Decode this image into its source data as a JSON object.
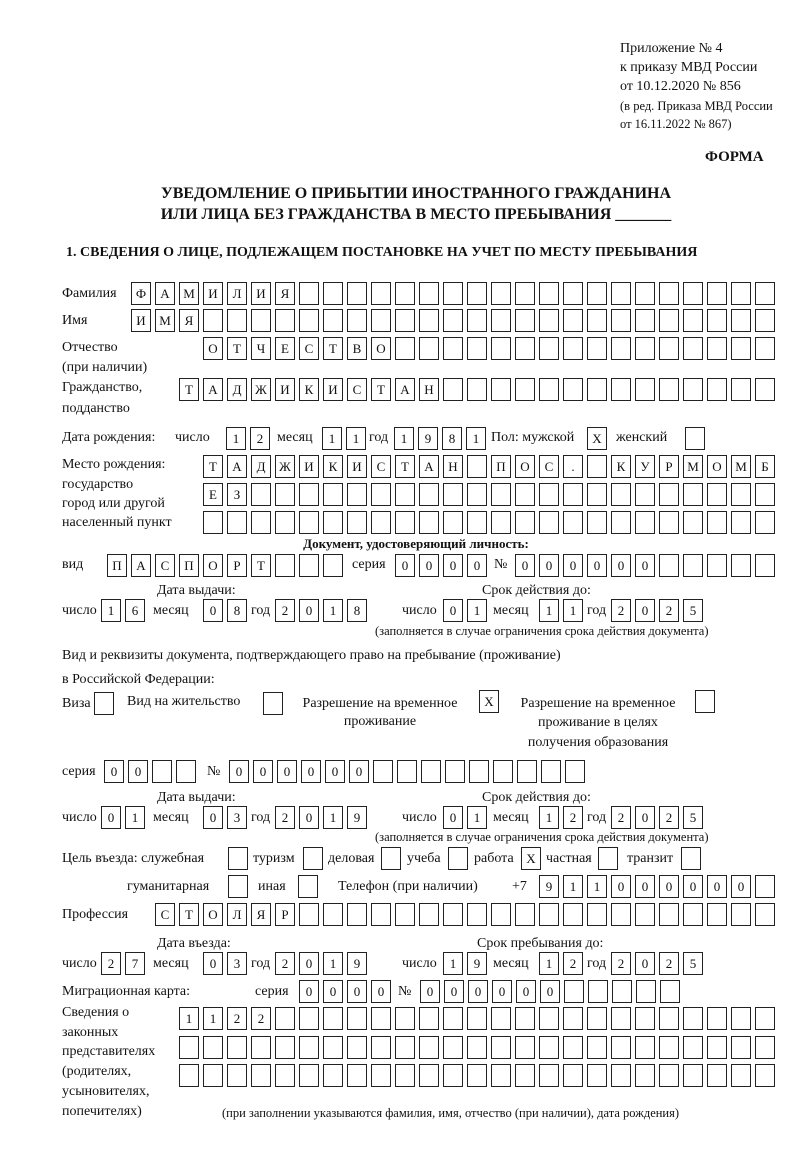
{
  "header": {
    "appendix": "Приложение № 4",
    "order": "к приказу МВД России",
    "order_date": "от 10.12.2020 № 856",
    "edition_1": "(в ред. Приказа МВД России",
    "edition_2": "от 16.11.2022 № 867)",
    "form_label": "ФОРМА",
    "title_1": "УВЕДОМЛЕНИЕ О ПРИБЫТИИ ИНОСТРАННОГО ГРАЖДАНИНА",
    "title_2": "ИЛИ ЛИЦА БЕЗ ГРАЖДАНСТВА В МЕСТО ПРЕБЫВАНИЯ _______",
    "section_1": "1. СВЕДЕНИЯ О ЛИЦЕ, ПОДЛЕЖАЩЕМ ПОСТАНОВКЕ НА УЧЕТ ПО МЕСТУ ПРЕБЫВАНИЯ"
  },
  "labels": {
    "surname": "Фамилия",
    "name": "Имя",
    "patronymic": "Отчество",
    "patronymic_note": "(при наличии)",
    "citizenship": "Гражданство,",
    "citizenship_2": "подданство",
    "birth_date": "Дата рождения:",
    "day": "число",
    "month": "месяц",
    "year": "год",
    "sex": "Пол: мужской",
    "female": "женский",
    "birthplace_1": "Место рождения:",
    "birthplace_2": "государство",
    "birthplace_3": "город или другой",
    "birthplace_4": "населенный пункт",
    "id_doc": "Документ, удостоверяющий личность:",
    "kind": "вид",
    "series": "серия",
    "number": "№",
    "issue_date": "Дата выдачи:",
    "valid_until": "Срок действия до:",
    "validity_note": "(заполняется в случае ограничения срока действия документа)",
    "stay_doc_1": "Вид и реквизиты документа, подтверждающего право на пребывание (проживание)",
    "stay_doc_2": "в Российской Федерации:",
    "visa": "Виза",
    "residence": "Вид на жительство",
    "trp_1": "Разрешение на временное",
    "trp_2": "проживание",
    "trp_edu_1": "Разрешение на временное",
    "trp_edu_2": "проживание в целях",
    "trp_edu_3": "получения образования",
    "purpose": "Цель въезда: служебная",
    "tourism": "туризм",
    "business": "деловая",
    "study": "учеба",
    "work": "работа",
    "private": "частная",
    "transit": "транзит",
    "humanitarian": "гуманитарная",
    "other": "иная",
    "phone": "Телефон (при наличии)",
    "phone_prefix": "+7",
    "profession": "Профессия",
    "entry_date": "Дата въезда:",
    "stay_until": "Срок пребывания до:",
    "migration_card": "Миграционная карта:",
    "reps_1": "Сведения о",
    "reps_2": "законных",
    "reps_3": "представителях",
    "reps_4": "(родителях,",
    "reps_5": "усыновителях,",
    "reps_6": "попечителях)",
    "reps_note": "(при заполнении указываются фамилия, имя, отчество (при наличии), дата рождения)"
  },
  "values": {
    "surname": "ФАМИЛИЯ",
    "name": "ИМЯ",
    "patronymic": "ОТЧЕСТВО",
    "citizenship": "ТАДЖИКИСТАН",
    "birth": {
      "day": "12",
      "month": "11",
      "year": "1981"
    },
    "sex_male": "X",
    "sex_female": "",
    "birthplace_1": "ТАДЖИКИСТАН ПОС. КУРМОМБ",
    "birthplace_2": "ЕЗ",
    "birthplace_3": "",
    "id_kind": "ПАСПОРТ",
    "id_series": "0000",
    "id_number": "000000",
    "id_issue": {
      "day": "16",
      "month": "08",
      "year": "2018"
    },
    "id_valid": {
      "day": "01",
      "month": "11",
      "year": "2025"
    },
    "visa": "",
    "residence": "",
    "trp": "X",
    "trp_edu": "",
    "stay_series": "00",
    "stay_number": "000000",
    "stay_issue": {
      "day": "01",
      "month": "03",
      "year": "2019"
    },
    "stay_valid": {
      "day": "01",
      "month": "12",
      "year": "2025"
    },
    "purpose": {
      "official": "",
      "tourism": "",
      "business": "",
      "study": "",
      "work": "X",
      "private": "",
      "transit": "",
      "humanitarian": "",
      "other": ""
    },
    "phone": "911000000",
    "profession": "СТОЛЯР",
    "entry": {
      "day": "27",
      "month": "03",
      "year": "2019"
    },
    "stay_until": {
      "day": "19",
      "month": "12",
      "year": "2025"
    },
    "mc_series": "0000",
    "mc_number": "000000",
    "reps_1": "1122",
    "reps_2": "",
    "reps_3": ""
  }
}
